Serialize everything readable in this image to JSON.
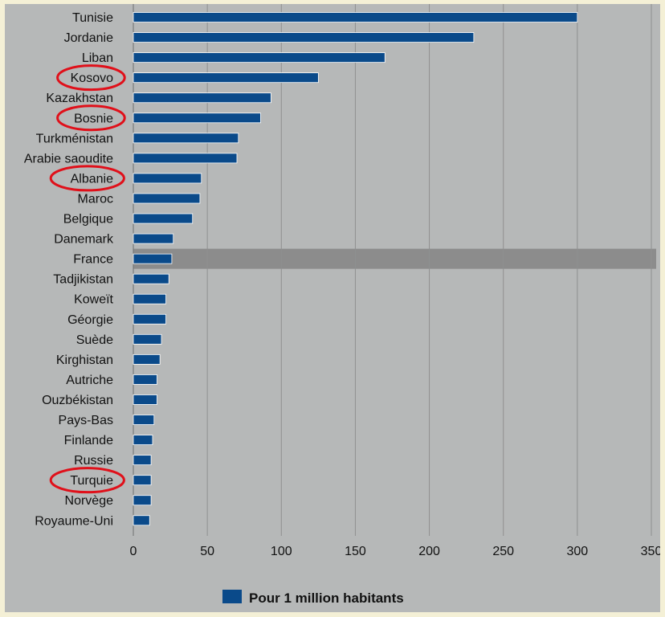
{
  "chart_data": {
    "type": "bar",
    "orientation": "horizontal",
    "categories": [
      "Tunisie",
      "Jordanie",
      "Liban",
      "Kosovo",
      "Kazakhstan",
      "Bosnie",
      "Turkménistan",
      "Arabie saoudite",
      "Albanie",
      "Maroc",
      "Belgique",
      "Danemark",
      "France",
      "Tadjikistan",
      "Koweït",
      "Géorgie",
      "Suède",
      "Kirghistan",
      "Autriche",
      "Ouzbékistan",
      "Pays-Bas",
      "Finlande",
      "Russie",
      "Turquie",
      "Norvège",
      "Royaume-Uni"
    ],
    "series": [
      {
        "name": "Pour 1 million habitants",
        "values": [
          300,
          230,
          170,
          125,
          93,
          86,
          71,
          70,
          46,
          45,
          40,
          27,
          26,
          24,
          22,
          22,
          19,
          18,
          16,
          16,
          14,
          13,
          12,
          12,
          12,
          11
        ]
      }
    ],
    "xlim": [
      0,
      350
    ],
    "xticks": [
      "0",
      "50",
      "100",
      "150",
      "200",
      "250",
      "300",
      "350"
    ],
    "grid": "vertical",
    "legend": "bottom",
    "highlighted_row": "France",
    "circled_labels": [
      "Kosovo",
      "Bosnie",
      "Albanie",
      "Turquie"
    ],
    "colors": {
      "bar": "#0a4a8a",
      "bar_stroke": "#ffffff",
      "highlight_band": "#8c8c8c",
      "circle": "#e0101a",
      "plot_background": "#b6b8b8",
      "page_background": "#f4f0d6"
    }
  }
}
